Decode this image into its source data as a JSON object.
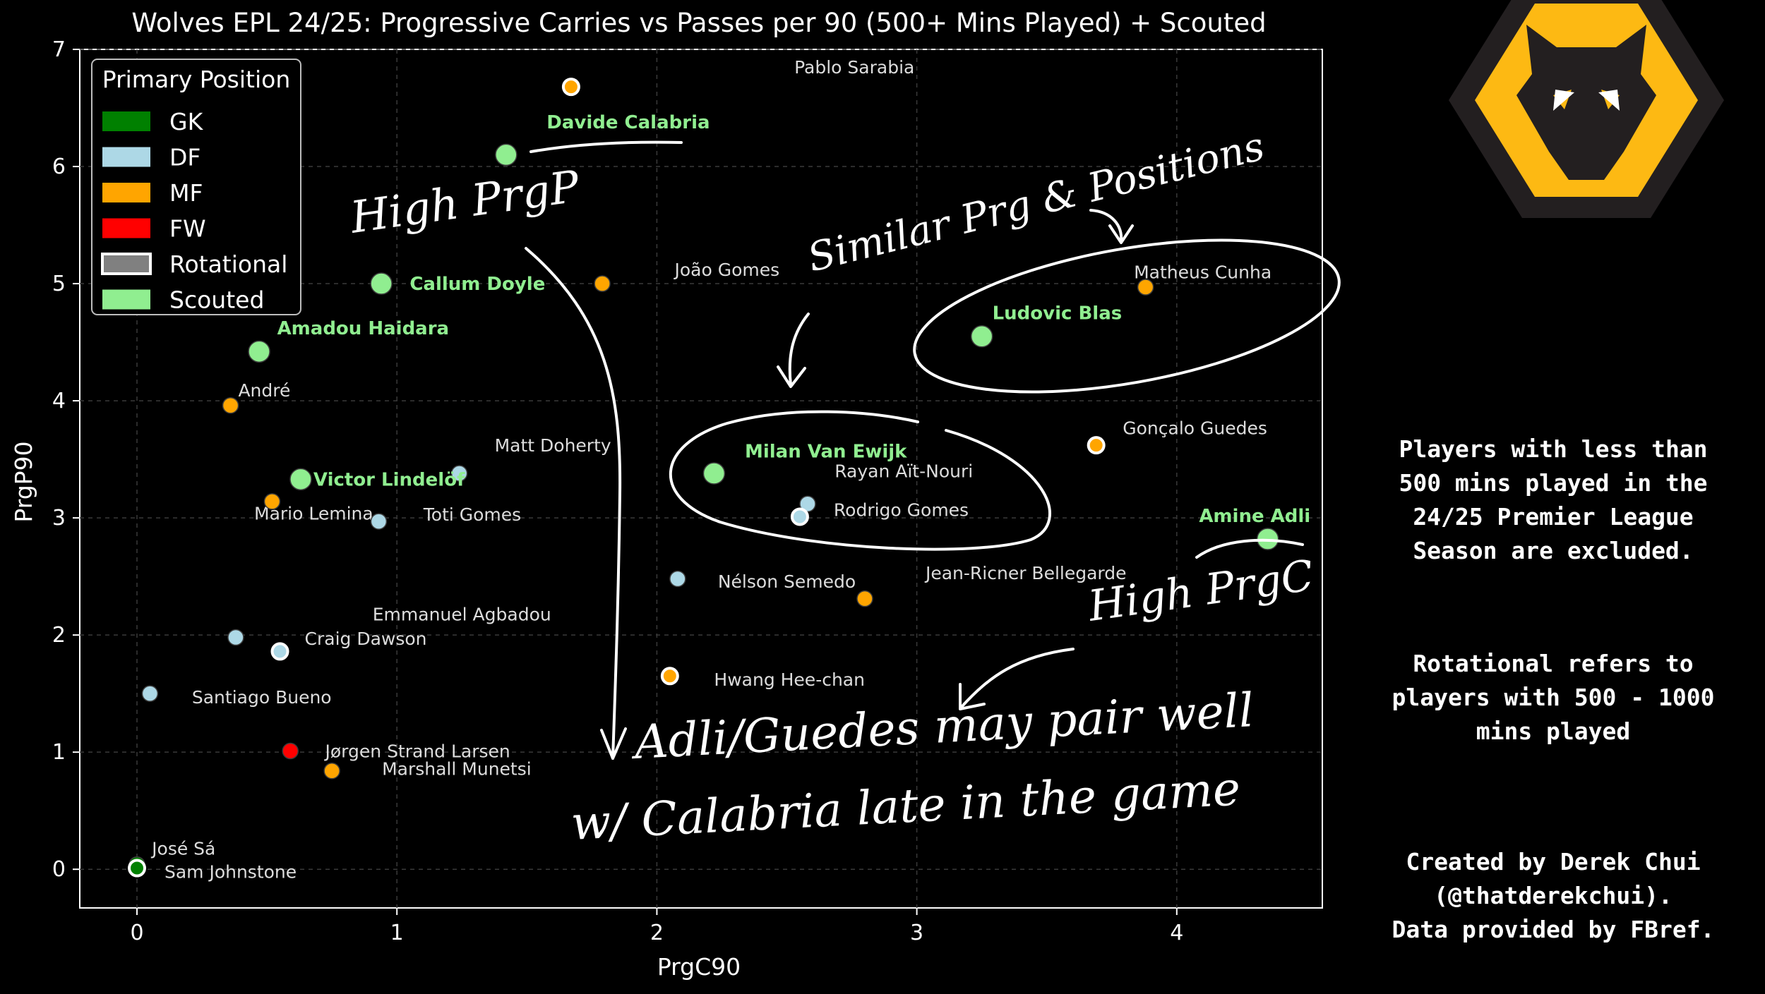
{
  "chart_data": {
    "type": "scatter",
    "title": "Wolves EPL 24/25: Progressive Carries vs Passes per 90 (500+ Mins Played) + Scouted",
    "xlabel": "PrgC90",
    "ylabel": "PrgP90",
    "xlim": [
      -0.22,
      4.56
    ],
    "ylim": [
      -0.33,
      7.0
    ],
    "xticks": [
      "0",
      "1",
      "2",
      "3",
      "4"
    ],
    "yticks": [
      "0",
      "1",
      "2",
      "3",
      "4",
      "5",
      "6",
      "7"
    ],
    "grid": true,
    "legend": {
      "title": "Primary Position",
      "placement": "upper-left",
      "entries": [
        {
          "label": "GK",
          "color": "#008000"
        },
        {
          "label": "DF",
          "color": "#add8e6"
        },
        {
          "label": "MF",
          "color": "#ffa500"
        },
        {
          "label": "FW",
          "color": "#ff0000"
        },
        {
          "label": "Rotational",
          "color": "#808080"
        },
        {
          "label": "Scouted",
          "color": "#90ee90"
        }
      ]
    },
    "colors": {
      "GK": "#008000",
      "DF": "#add8e6",
      "MF": "#ffa500",
      "FW": "#ff0000",
      "Scouted": "#90ee90"
    },
    "points": [
      {
        "name": "Pablo Sarabia",
        "x": 1.67,
        "y": 6.68,
        "pos": "MF",
        "rotational": true,
        "label_dx": 1.09,
        "label_dy": 0.17
      },
      {
        "name": "Davide Calabria",
        "x": 1.42,
        "y": 6.1,
        "pos": "Scouted",
        "scouted": true,
        "label_dx": 0.47,
        "label_dy": 0.28
      },
      {
        "name": "João Gomes",
        "x": 1.79,
        "y": 5.0,
        "pos": "MF",
        "label_dx": 0.48,
        "label_dy": 0.12
      },
      {
        "name": "Callum Doyle",
        "x": 0.94,
        "y": 5.0,
        "pos": "Scouted",
        "scouted": true,
        "label_dx": 0.37,
        "label_dy": 0.0
      },
      {
        "name": "Matheus Cunha",
        "x": 3.88,
        "y": 4.97,
        "pos": "MF",
        "label_dx": 0.22,
        "label_dy": 0.13
      },
      {
        "name": "Ludovic Blas",
        "x": 3.25,
        "y": 4.55,
        "pos": "Scouted",
        "scouted": true,
        "label_dx": 0.29,
        "label_dy": 0.2
      },
      {
        "name": "Amadou Haidara",
        "x": 0.47,
        "y": 4.42,
        "pos": "Scouted",
        "scouted": true,
        "label_dx": 0.4,
        "label_dy": 0.2
      },
      {
        "name": "André",
        "x": 0.36,
        "y": 3.96,
        "pos": "MF",
        "label_dx": 0.13,
        "label_dy": 0.13
      },
      {
        "name": "Gonçalo Guedes",
        "x": 3.69,
        "y": 3.62,
        "pos": "MF",
        "rotational": true,
        "label_dx": 0.38,
        "label_dy": 0.15
      },
      {
        "name": "Matt Doherty",
        "x": 1.24,
        "y": 3.38,
        "pos": "DF",
        "label_dx": 0.36,
        "label_dy": 0.24
      },
      {
        "name": "Milan Van Ewijk",
        "x": 2.22,
        "y": 3.38,
        "pos": "Scouted",
        "scouted": true,
        "label_dx": 0.43,
        "label_dy": 0.19
      },
      {
        "name": "Victor Lindelöf",
        "x": 0.63,
        "y": 3.33,
        "pos": "Scouted",
        "scouted": true,
        "label_dx": 0.34,
        "label_dy": 0.0
      },
      {
        "name": "Mario Lemina",
        "x": 0.52,
        "y": 3.14,
        "pos": "MF",
        "label_dx": 0.16,
        "label_dy": -0.1
      },
      {
        "name": "Rayan Aït-Nouri",
        "x": 2.58,
        "y": 3.12,
        "pos": "DF",
        "label_dx": 0.37,
        "label_dy": 0.28
      },
      {
        "name": "Rodrigo Gomes",
        "x": 2.55,
        "y": 3.01,
        "pos": "DF",
        "rotational": true,
        "label_dx": 0.39,
        "label_dy": 0.06
      },
      {
        "name": "Toti Gomes",
        "x": 0.93,
        "y": 2.97,
        "pos": "DF",
        "label_dx": 0.36,
        "label_dy": 0.06
      },
      {
        "name": "Amine Adli",
        "x": 4.35,
        "y": 2.82,
        "pos": "Scouted",
        "scouted": true,
        "label_dx": -0.05,
        "label_dy": 0.2
      },
      {
        "name": "Nélson Semedo",
        "x": 2.08,
        "y": 2.48,
        "pos": "DF",
        "label_dx": 0.42,
        "label_dy": -0.02
      },
      {
        "name": "Jean-Ricner Bellegarde",
        "x": 2.8,
        "y": 2.31,
        "pos": "MF",
        "label_dx": 0.62,
        "label_dy": 0.22
      },
      {
        "name": "Emmanuel Agbadou",
        "x": 0.38,
        "y": 1.98,
        "pos": "DF",
        "label_dx": 0.87,
        "label_dy": 0.2
      },
      {
        "name": "Craig Dawson",
        "x": 0.55,
        "y": 1.86,
        "pos": "DF",
        "rotational": true,
        "label_dx": 0.33,
        "label_dy": 0.11
      },
      {
        "name": "Hwang Hee-chan",
        "x": 2.05,
        "y": 1.65,
        "pos": "MF",
        "rotational": true,
        "label_dx": 0.46,
        "label_dy": -0.03
      },
      {
        "name": "Santiago Bueno",
        "x": 0.05,
        "y": 1.5,
        "pos": "DF",
        "label_dx": 0.43,
        "label_dy": -0.03
      },
      {
        "name": "Jørgen Strand Larsen",
        "x": 0.59,
        "y": 1.01,
        "pos": "FW",
        "label_dx": 0.49,
        "label_dy": 0.0
      },
      {
        "name": "Marshall Munetsi",
        "x": 0.75,
        "y": 0.84,
        "pos": "MF",
        "label_dx": 0.48,
        "label_dy": 0.02
      },
      {
        "name": "José Sá",
        "x": 0.0,
        "y": 0.04,
        "pos": "GK",
        "label_dx": 0.18,
        "label_dy": 0.14
      },
      {
        "name": "Sam Johnstone",
        "x": 0.0,
        "y": 0.01,
        "pos": "GK",
        "rotational": true,
        "label_dx": 0.36,
        "label_dy": -0.03
      }
    ]
  },
  "handwritten_notes": [
    "High PrgP",
    "Similar Prg & Positions",
    "High PrgC",
    "Adli/Guedes may pair well w/ Calabria late in the game"
  ],
  "side_panel": {
    "logo": "wolves-crest-icon",
    "note_excluded": [
      "Players with less than",
      "500 mins played in the",
      "24/25 Premier League",
      "Season are excluded."
    ],
    "note_rotational": [
      "Rotational refers to",
      "players with 500 - 1000",
      "mins played"
    ],
    "note_credit": [
      "Created by Derek Chui",
      "(@thatderekchui).",
      "Data provided by FBref."
    ]
  }
}
